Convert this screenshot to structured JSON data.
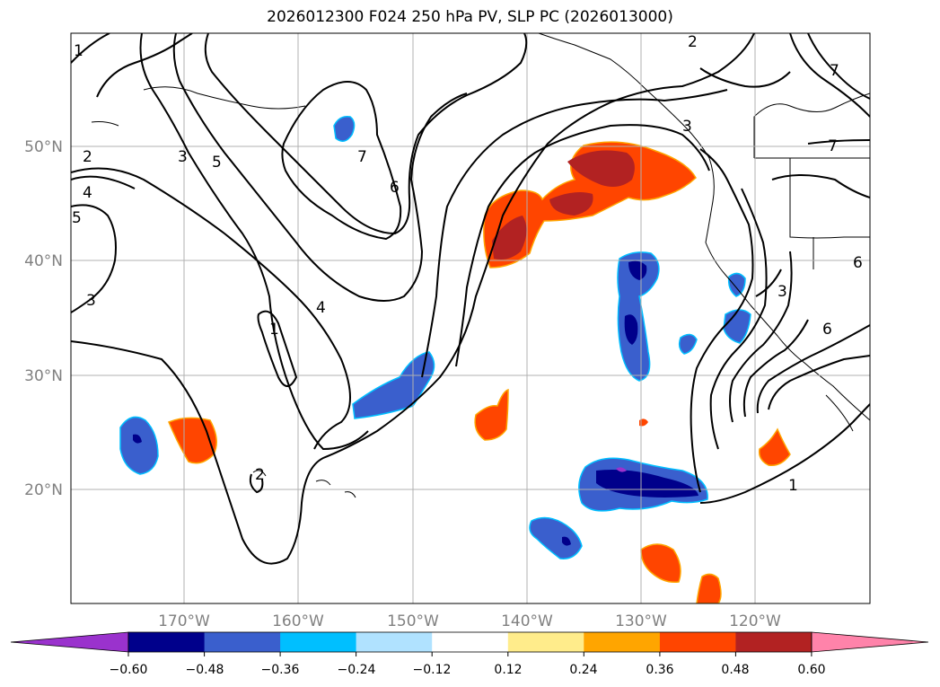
{
  "title": "2026012300 F024 250 hPa PV, SLP PC (2026013000)",
  "lat_labels": [
    "50°N",
    "40°N",
    "30°N",
    "20°N"
  ],
  "lon_labels": [
    "170°W",
    "160°W",
    "150°W",
    "140°W",
    "130°W",
    "120°W"
  ],
  "colorbar": {
    "ticks": [
      "−0.60",
      "−0.48",
      "−0.36",
      "−0.24",
      "−0.12",
      "0.12",
      "0.24",
      "0.36",
      "0.48",
      "0.60"
    ],
    "colors": [
      "#9a32cd",
      "#00008b",
      "#3a5fcd",
      "#00bfff",
      "#b0e2ff",
      "#ffffff",
      "#ffec8b",
      "#ffa500",
      "#ff4500",
      "#b22222",
      "#ff83aa"
    ]
  },
  "contour_labels": [
    "1",
    "2",
    "2",
    "2",
    "3",
    "3",
    "4",
    "5",
    "5",
    "7",
    "6",
    "4",
    "1",
    "7",
    "7",
    "6",
    "6",
    "3",
    "1",
    "3"
  ]
}
